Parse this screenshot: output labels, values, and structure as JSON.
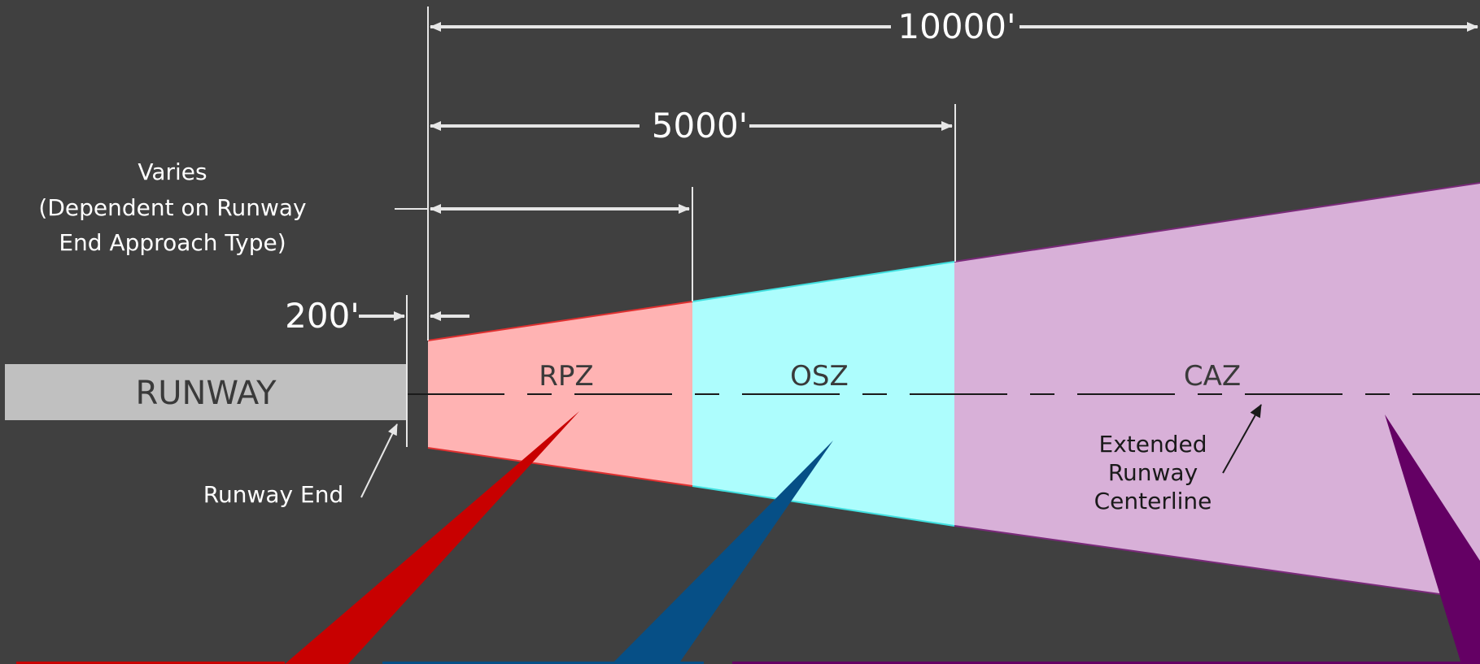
{
  "dimensions": {
    "overall": "10000'",
    "middle": "5000'",
    "offset": "200'"
  },
  "varies_note": {
    "line1": "Varies",
    "line2": "(Dependent on Runway",
    "line3": "End Approach Type)"
  },
  "runway": {
    "label": "RUNWAY",
    "end_label": "Runway End"
  },
  "zones": [
    {
      "label": "RPZ",
      "fill": "#ffb3b3",
      "edge": "#e03030",
      "pointer": "#c80000"
    },
    {
      "label": "OSZ",
      "fill": "#adfdfd",
      "edge": "#40e0e0",
      "pointer": "#064f86"
    },
    {
      "label": "CAZ",
      "fill": "#d8b0d8",
      "edge": "#7a2a7a",
      "pointer": "#640064"
    }
  ],
  "centerline": {
    "line1": "Extended",
    "line2": "Runway",
    "line3": "Centerline"
  },
  "colors": {
    "background": "#404040",
    "dimension_lines": "#e6e6e6",
    "runway_fill": "#c0c0c0"
  }
}
